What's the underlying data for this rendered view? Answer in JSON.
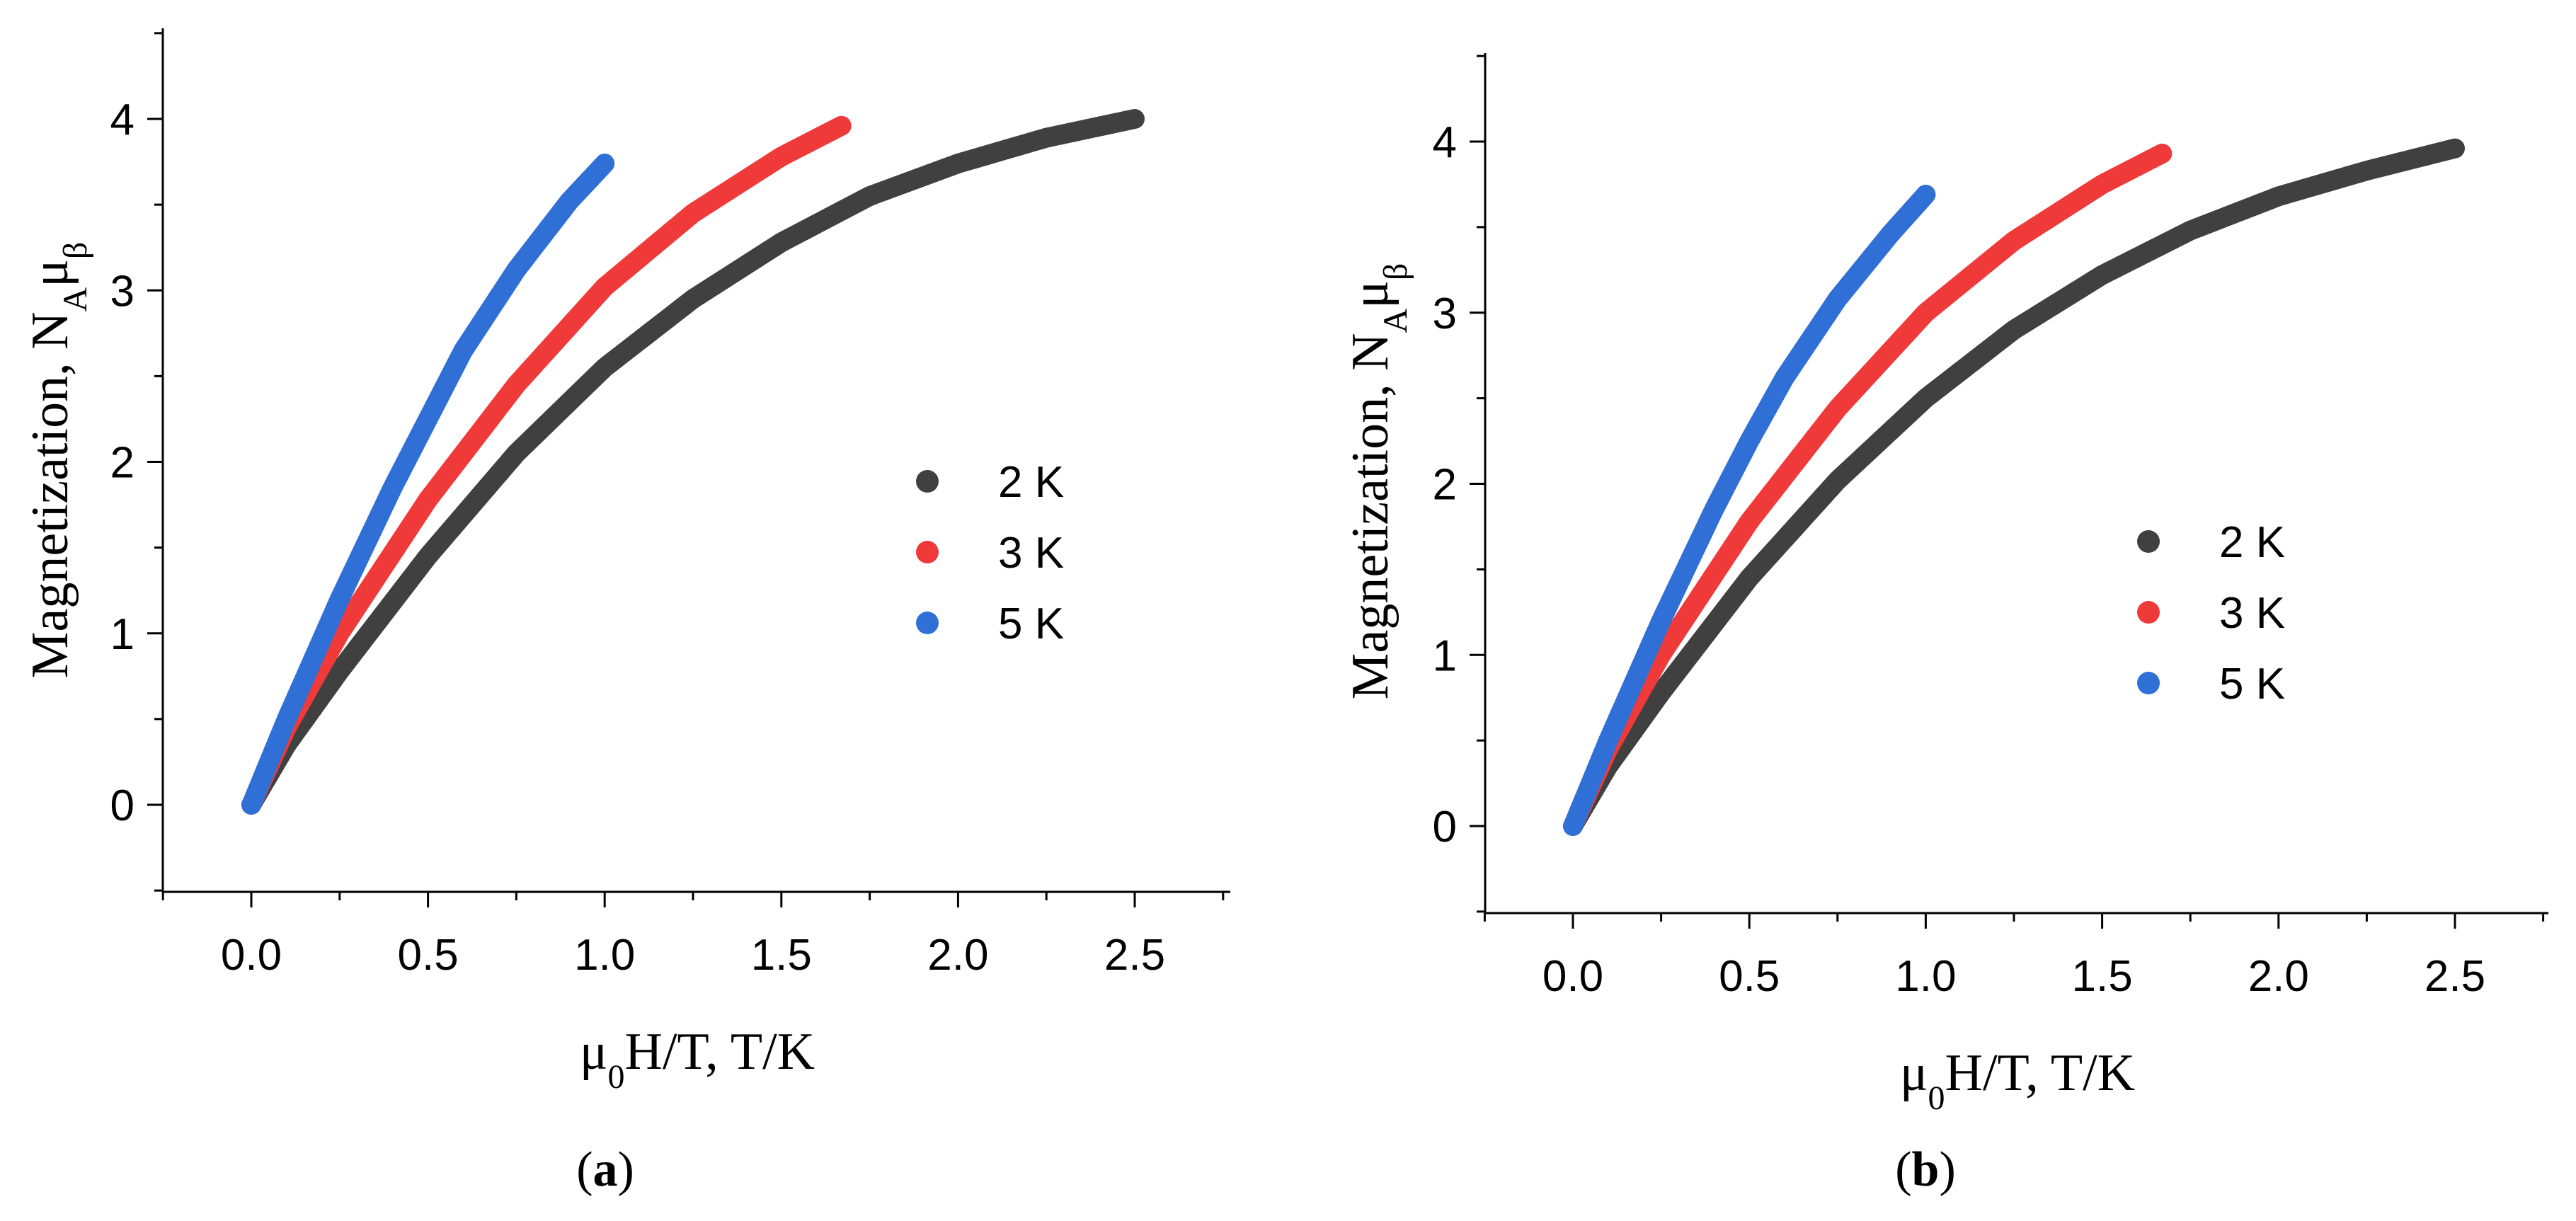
{
  "chart_data": [
    {
      "type": "scatter",
      "panel": "a",
      "caption": "(a)",
      "xlabel": "μ0H/T, T/K",
      "ylabel": "Magnetization, NAμβ",
      "xlim": [
        -0.25,
        2.75
      ],
      "ylim": [
        -0.5,
        4.5
      ],
      "xticks": [
        0.0,
        0.5,
        1.0,
        1.5,
        2.0,
        2.5
      ],
      "xtick_labels": [
        "0.0",
        "0.5",
        "1.0",
        "1.5",
        "2.0",
        "2.5"
      ],
      "yticks": [
        0,
        1,
        2,
        3,
        4
      ],
      "ytick_labels": [
        "0",
        "1",
        "2",
        "3",
        "4"
      ],
      "legend_position": "center-right",
      "series": [
        {
          "name": "2 K",
          "color": "#404040",
          "x": [
            0.0,
            0.1,
            0.25,
            0.5,
            0.75,
            1.0,
            1.25,
            1.5,
            1.75,
            2.0,
            2.25,
            2.5
          ],
          "y": [
            0.0,
            0.35,
            0.78,
            1.45,
            2.05,
            2.55,
            2.95,
            3.28,
            3.55,
            3.74,
            3.89,
            4.0
          ]
        },
        {
          "name": "3 K",
          "color": "#f03a3a",
          "x": [
            0.0,
            0.1,
            0.25,
            0.5,
            0.75,
            1.0,
            1.25,
            1.5,
            1.67
          ],
          "y": [
            0.0,
            0.45,
            1.0,
            1.78,
            2.45,
            3.02,
            3.45,
            3.78,
            3.96
          ]
        },
        {
          "name": "5 K",
          "color": "#2f6fd6",
          "x": [
            0.0,
            0.1,
            0.25,
            0.4,
            0.5,
            0.6,
            0.75,
            0.9,
            1.0
          ],
          "y": [
            0.0,
            0.5,
            1.2,
            1.85,
            2.25,
            2.65,
            3.12,
            3.52,
            3.74
          ]
        }
      ]
    },
    {
      "type": "scatter",
      "panel": "b",
      "caption": "(b)",
      "xlabel": "μ0H/T, T/K",
      "ylabel": "Magnetization, NAμβ",
      "xlim": [
        -0.25,
        2.75
      ],
      "ylim": [
        -0.5,
        4.5
      ],
      "xticks": [
        0.0,
        0.5,
        1.0,
        1.5,
        2.0,
        2.5
      ],
      "xtick_labels": [
        "0.0",
        "0.5",
        "1.0",
        "1.5",
        "2.0",
        "2.5"
      ],
      "yticks": [
        0,
        1,
        2,
        3,
        4
      ],
      "ytick_labels": [
        "0",
        "1",
        "2",
        "3",
        "4"
      ],
      "legend_position": "center-right",
      "series": [
        {
          "name": "2 K",
          "color": "#404040",
          "x": [
            0.0,
            0.1,
            0.25,
            0.5,
            0.75,
            1.0,
            1.25,
            1.5,
            1.75,
            2.0,
            2.25,
            2.5
          ],
          "y": [
            0.0,
            0.35,
            0.78,
            1.45,
            2.02,
            2.5,
            2.9,
            3.22,
            3.48,
            3.68,
            3.83,
            3.96
          ]
        },
        {
          "name": "3 K",
          "color": "#f03a3a",
          "x": [
            0.0,
            0.1,
            0.25,
            0.5,
            0.75,
            1.0,
            1.25,
            1.5,
            1.67
          ],
          "y": [
            0.0,
            0.45,
            1.0,
            1.78,
            2.44,
            3.0,
            3.42,
            3.75,
            3.93
          ]
        },
        {
          "name": "5 K",
          "color": "#2f6fd6",
          "x": [
            0.0,
            0.1,
            0.25,
            0.4,
            0.5,
            0.6,
            0.75,
            0.9,
            1.0
          ],
          "y": [
            0.0,
            0.5,
            1.2,
            1.85,
            2.25,
            2.62,
            3.08,
            3.46,
            3.69
          ]
        }
      ]
    }
  ]
}
